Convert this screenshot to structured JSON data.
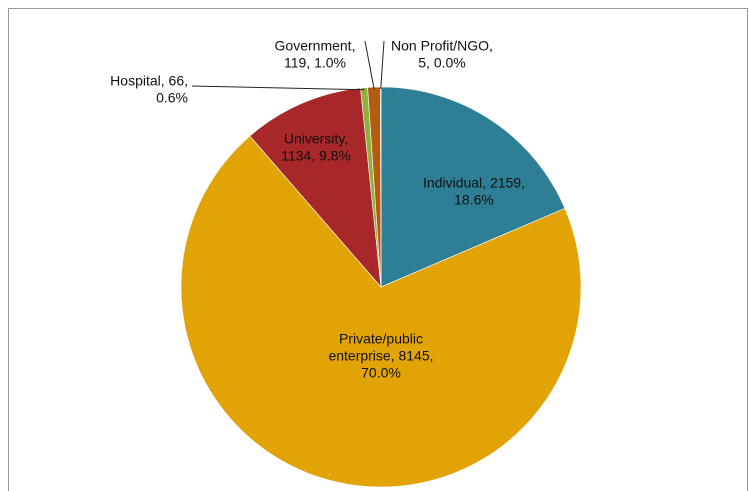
{
  "chart_data": {
    "type": "pie",
    "values": [
      2159,
      8145,
      1134,
      66,
      119,
      5
    ],
    "value_labels": [
      [
        "Individual, 2159,",
        "18.6%"
      ],
      [
        "Private/public",
        "enterprise, 8145,",
        "70.0%"
      ],
      [
        "University,",
        "1134, 9.8%"
      ],
      [
        "Hospital, 66,",
        "0.6%"
      ],
      [
        "Government,",
        "119, 1.0%"
      ],
      [
        "Non Profit/NGO,",
        "5, 0.0%"
      ]
    ],
    "colors": [
      "#2e7f95",
      "#e2a307",
      "#a8282a",
      "#8fb03c",
      "#b45b12",
      "#7a3a10"
    ]
  }
}
